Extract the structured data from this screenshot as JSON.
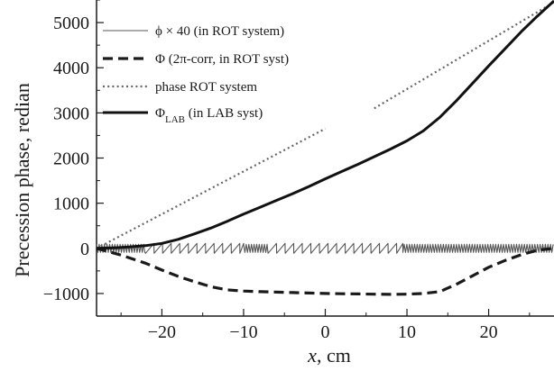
{
  "chart_data": {
    "type": "line",
    "xlabel": "x, cm",
    "ylabel": "Precession phase, redian",
    "xlim": [
      -28,
      28
    ],
    "ylim": [
      -1500,
      5500
    ],
    "x_ticks": [
      -20,
      -10,
      0,
      10,
      20
    ],
    "x_tick_labels": [
      "−20",
      "−10",
      "0",
      "10",
      "20"
    ],
    "y_ticks": [
      -1000,
      0,
      1000,
      2000,
      3000,
      4000,
      5000
    ],
    "y_tick_labels": [
      "−1000",
      "0",
      "1000",
      "2000",
      "3000",
      "4000",
      "5000"
    ],
    "grid": false,
    "legend_position": "top-left",
    "legend": [
      {
        "series": 0,
        "label": "ϕ × 40 (in ROT system)"
      },
      {
        "series": 1,
        "label": "Φ (2π-corr, in ROT syst)"
      },
      {
        "series": 2,
        "label": "phase ROT system"
      },
      {
        "series": 3,
        "label": "Φ",
        "label_sub": "LAB",
        "label_suffix": " (in LAB syst)"
      }
    ],
    "series": [
      {
        "style": "thin-solid",
        "color": "#555555",
        "description_type": "sawtooth oscillation",
        "dense_ranges": [
          [
            -28,
            -22
          ],
          [
            -10,
            -7
          ],
          [
            9.5,
            28
          ]
        ],
        "sparse_range": [
          -7,
          9.5
        ],
        "sparse_period": 1.05,
        "sparse_amplitude": 110,
        "dense_amplitude": 90,
        "glitch_x": 7.7
      },
      {
        "style": "dashed",
        "color": "#1a1a1a",
        "x": [
          -28,
          -25,
          -22,
          -20,
          -18,
          -16,
          -14,
          -12,
          -10,
          -8,
          -6,
          -4,
          -2,
          0,
          2,
          4,
          6,
          8,
          10,
          12,
          14,
          16,
          18,
          20,
          22,
          24,
          26,
          28
        ],
        "y": [
          0,
          -150,
          -330,
          -480,
          -620,
          -740,
          -850,
          -920,
          -945,
          -960,
          -970,
          -980,
          -990,
          -1000,
          -1005,
          -1010,
          -1015,
          -1020,
          -1015,
          -1000,
          -960,
          -800,
          -610,
          -420,
          -270,
          -140,
          -40,
          0
        ]
      },
      {
        "style": "dotted",
        "color": "#666666",
        "segments": [
          {
            "x": [
              -28,
              0
            ],
            "y": [
              0,
              2650
            ]
          },
          {
            "x": [
              6,
              28
            ],
            "y": [
              3100,
              5450
            ]
          }
        ]
      },
      {
        "style": "thick-solid",
        "color": "#111111",
        "x": [
          -28,
          -26,
          -24,
          -22,
          -20,
          -18,
          -16,
          -14,
          -12,
          -10,
          -8,
          -6,
          -4,
          -2,
          0,
          2,
          4,
          6,
          8,
          10,
          12,
          14,
          16,
          18,
          20,
          22,
          24,
          26,
          28
        ],
        "y": [
          0,
          10,
          30,
          60,
          110,
          200,
          320,
          450,
          600,
          760,
          910,
          1060,
          1210,
          1370,
          1540,
          1700,
          1860,
          2030,
          2200,
          2380,
          2600,
          2900,
          3260,
          3650,
          4040,
          4420,
          4800,
          5150,
          5480
        ]
      }
    ]
  }
}
